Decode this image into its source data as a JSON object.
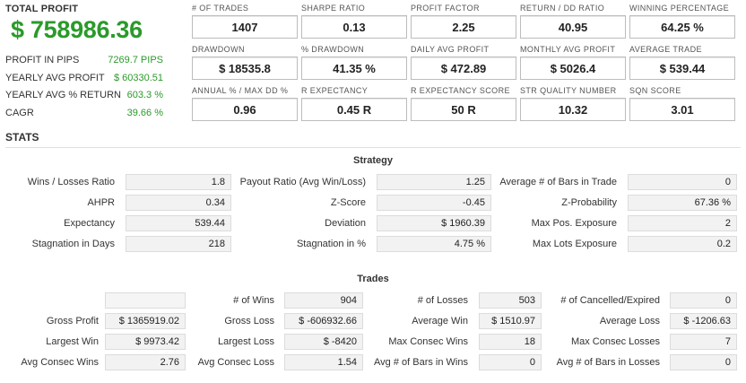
{
  "summary": {
    "total_profit_label": "TOTAL PROFIT",
    "total_profit_value": "$ 758986.36",
    "rows": [
      {
        "label": "PROFIT IN PIPS",
        "value": "7269.7 PIPS"
      },
      {
        "label": "YEARLY AVG PROFIT",
        "value": "$ 60330.51"
      },
      {
        "label": "YEARLY AVG % RETURN",
        "value": "603.3 %"
      },
      {
        "label": "CAGR",
        "value": "39.66 %"
      }
    ]
  },
  "metrics": [
    {
      "label": "# OF TRADES",
      "value": "1407"
    },
    {
      "label": "SHARPE RATIO",
      "value": "0.13"
    },
    {
      "label": "PROFIT FACTOR",
      "value": "2.25"
    },
    {
      "label": "RETURN / DD RATIO",
      "value": "40.95"
    },
    {
      "label": "WINNING PERCENTAGE",
      "value": "64.25 %"
    },
    {
      "label": "DRAWDOWN",
      "value": "$ 18535.8"
    },
    {
      "label": "% DRAWDOWN",
      "value": "41.35 %"
    },
    {
      "label": "DAILY AVG PROFIT",
      "value": "$ 472.89"
    },
    {
      "label": "MONTHLY AVG PROFIT",
      "value": "$ 5026.4"
    },
    {
      "label": "AVERAGE TRADE",
      "value": "$ 539.44"
    },
    {
      "label": "ANNUAL % / MAX DD %",
      "value": "0.96"
    },
    {
      "label": "R EXPECTANCY",
      "value": "0.45 R"
    },
    {
      "label": "R EXPECTANCY SCORE",
      "value": "50 R"
    },
    {
      "label": "STR QUALITY NUMBER",
      "value": "10.32"
    },
    {
      "label": "SQN SCORE",
      "value": "3.01"
    }
  ],
  "stats_heading": "STATS",
  "strategy": {
    "title": "Strategy",
    "rows": [
      [
        {
          "label": "Wins / Losses Ratio",
          "value": "1.8"
        },
        {
          "label": "Payout Ratio (Avg Win/Loss)",
          "value": "1.25"
        },
        {
          "label": "Average # of Bars in Trade",
          "value": "0"
        }
      ],
      [
        {
          "label": "AHPR",
          "value": "0.34"
        },
        {
          "label": "Z-Score",
          "value": "-0.45"
        },
        {
          "label": "Z-Probability",
          "value": "67.36 %"
        }
      ],
      [
        {
          "label": "Expectancy",
          "value": "539.44"
        },
        {
          "label": "Deviation",
          "value": "$ 1960.39"
        },
        {
          "label": "Max Pos. Exposure",
          "value": "2"
        }
      ],
      [
        {
          "label": "Stagnation in Days",
          "value": "218"
        },
        {
          "label": "Stagnation in %",
          "value": "4.75 %"
        },
        {
          "label": "Max Lots Exposure",
          "value": "0.2"
        }
      ]
    ]
  },
  "trades": {
    "title": "Trades",
    "rows": [
      [
        {
          "label": "",
          "value": ""
        },
        {
          "label": "# of Wins",
          "value": "904"
        },
        {
          "label": "# of Losses",
          "value": "503"
        },
        {
          "label": "# of Cancelled/Expired",
          "value": "0"
        }
      ],
      [
        {
          "label": "Gross Profit",
          "value": "$ 1365919.02"
        },
        {
          "label": "Gross Loss",
          "value": "$ -606932.66"
        },
        {
          "label": "Average Win",
          "value": "$ 1510.97"
        },
        {
          "label": "Average Loss",
          "value": "$ -1206.63"
        }
      ],
      [
        {
          "label": "Largest Win",
          "value": "$ 9973.42"
        },
        {
          "label": "Largest Loss",
          "value": "$ -8420"
        },
        {
          "label": "Max Consec Wins",
          "value": "18"
        },
        {
          "label": "Max Consec Losses",
          "value": "7"
        }
      ],
      [
        {
          "label": "Avg Consec Wins",
          "value": "2.76"
        },
        {
          "label": "Avg Consec Loss",
          "value": "1.54"
        },
        {
          "label": "Avg # of Bars in Wins",
          "value": "0"
        },
        {
          "label": "Avg # of Bars in Losses",
          "value": "0"
        }
      ]
    ]
  }
}
